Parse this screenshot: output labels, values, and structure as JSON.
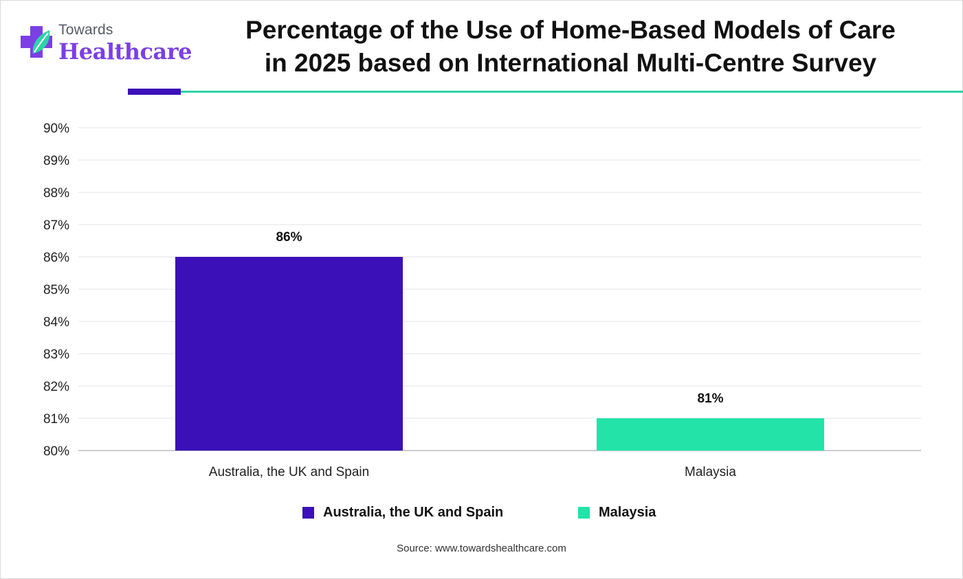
{
  "brand": {
    "name_top": "Towards",
    "name_bottom": "Healthcare"
  },
  "chart_data": {
    "type": "bar",
    "title": "Percentage of the Use of Home-Based Models of Care in 2025 based on International Multi-Centre Survey",
    "title_lines": [
      "Percentage of the Use of Home-Based Models of Care",
      "in 2025 based on International Multi-Centre Survey"
    ],
    "categories": [
      "Australia, the UK and Spain",
      "Malaysia"
    ],
    "values": [
      86,
      81
    ],
    "data_labels": [
      "86%",
      "81%"
    ],
    "colors": [
      "#3b10b8",
      "#24e3a8"
    ],
    "ylim": [
      80,
      90
    ],
    "yticks": [
      "80%",
      "81%",
      "82%",
      "83%",
      "84%",
      "85%",
      "86%",
      "87%",
      "88%",
      "89%",
      "90%"
    ],
    "grid": true,
    "legend": {
      "position": "bottom",
      "entries": [
        "Australia, the UK and Spain",
        "Malaysia"
      ]
    },
    "xlabel": "",
    "ylabel": ""
  },
  "source": "Source: www.towardshealthcare.com"
}
